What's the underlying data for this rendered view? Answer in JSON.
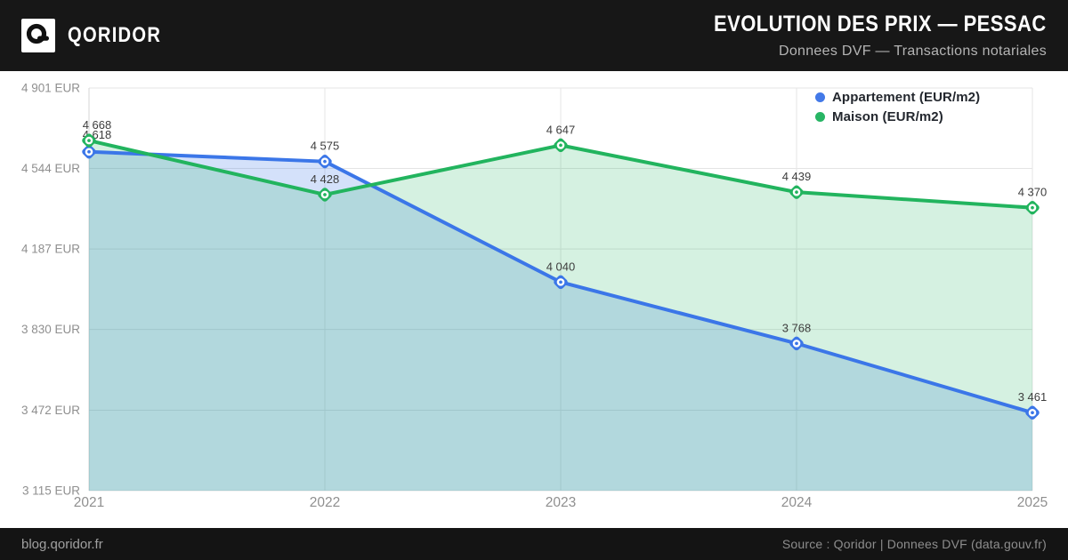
{
  "header": {
    "brand": "QORIDOR",
    "title": "EVOLUTION DES PRIX — PESSAC",
    "subtitle": "Donnees DVF — Transactions notariales"
  },
  "legend": {
    "items": [
      {
        "label": "Appartement (EUR/m2)",
        "color": "#4379e8"
      },
      {
        "label": "Maison (EUR/m2)",
        "color": "#27b564"
      }
    ]
  },
  "footer": {
    "left": "blog.qoridor.fr",
    "right": "Source : Qoridor | Donnees DVF (data.gouv.fr)"
  },
  "chart_data": {
    "type": "line",
    "title": "EVOLUTION DES PRIX — PESSAC",
    "subtitle": "Donnees DVF — Transactions notariales",
    "x": [
      "2021",
      "2022",
      "2023",
      "2024",
      "2025"
    ],
    "series": [
      {
        "name": "Appartement (EUR/m2)",
        "color": "#3b76e8",
        "fill_opacity": 0.22,
        "values": [
          4618,
          4575,
          4040,
          3768,
          3461
        ],
        "point_labels": [
          "4 618",
          "4 575",
          "4 040",
          "3 768",
          "3 461"
        ]
      },
      {
        "name": "Maison (EUR/m2)",
        "color": "#22b45e",
        "fill_opacity": 0.19,
        "values": [
          4668,
          4428,
          4647,
          4439,
          4370
        ],
        "point_labels": [
          "4 668",
          "4 428",
          "4 647",
          "4 439",
          "4 370"
        ]
      }
    ],
    "y_ticks": [
      "4 901 EUR",
      "4 544 EUR",
      "4 187 EUR",
      "3 830 EUR",
      "3 472 EUR",
      "3 115 EUR"
    ],
    "y_tick_values": [
      4901,
      4544,
      4187,
      3830,
      3472,
      3115
    ],
    "ylim": [
      3115,
      4901
    ],
    "xlabel": "",
    "ylabel": "",
    "grid": true,
    "area": true,
    "legend_position": "top-right",
    "colors": {
      "grid": "#e4e4e4",
      "axis": "#d6d6d6",
      "tick_label": "#8f8f8f",
      "point_label": "#3d3d3d"
    }
  }
}
